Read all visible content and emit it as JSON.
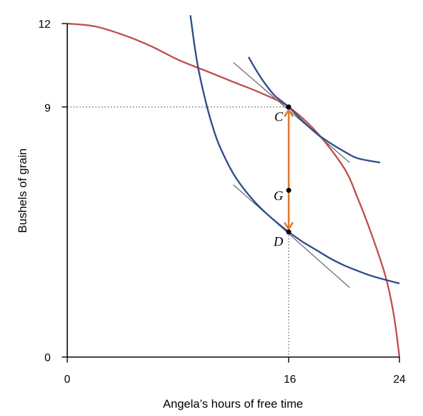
{
  "chart_data": {
    "type": "line",
    "xlabel": "Angela’s hours of free time",
    "ylabel": "Bushels of grain",
    "xlim": [
      0,
      24
    ],
    "ylim": [
      0,
      12
    ],
    "xticks": [
      "0",
      "16",
      "24"
    ],
    "yticks": [
      "0",
      "9",
      "12"
    ],
    "grid": false,
    "colors": {
      "frontier": "#c0504d",
      "indifference": "#2e4e8a",
      "arrow": "#e07a2e",
      "tangent": "#444444",
      "guide": "#555555"
    },
    "frontier": {
      "x": [
        0,
        2,
        4,
        6,
        8,
        10,
        12,
        14,
        16,
        18,
        20,
        21,
        22,
        23,
        23.6,
        24
      ],
      "y": [
        12,
        11.9,
        11.6,
        11.2,
        10.7,
        10.3,
        9.9,
        9.5,
        9.0,
        8.1,
        6.8,
        5.7,
        4.4,
        2.9,
        1.5,
        0
      ]
    },
    "indifference_curves": [
      {
        "x": [
          8.9,
          9.2,
          9.5,
          10.0,
          10.5,
          11.0,
          12.0,
          13.0,
          14.0,
          15.0,
          16.0,
          17.0,
          18.0,
          19.0,
          20.0,
          21.0,
          22.0,
          23.0,
          24.0
        ],
        "y": [
          12.3,
          11.2,
          10.3,
          9.2,
          8.3,
          7.6,
          6.6,
          5.9,
          5.35,
          4.9,
          4.5,
          4.15,
          3.85,
          3.55,
          3.3,
          3.1,
          2.92,
          2.78,
          2.65
        ]
      },
      {
        "x": [
          13.1,
          13.5,
          14.0,
          14.5,
          15.0,
          15.5,
          16.0,
          17.0,
          18.0,
          19.0,
          20.0,
          21.0,
          22.6
        ],
        "y": [
          10.8,
          10.45,
          10.05,
          9.7,
          9.4,
          9.2,
          9.0,
          8.5,
          8.05,
          7.7,
          7.4,
          7.15,
          7.0
        ]
      }
    ],
    "tangent_lines": [
      {
        "x": [
          12.0,
          20.4
        ],
        "y": [
          10.6,
          7.0
        ]
      },
      {
        "x": [
          12.0,
          20.4
        ],
        "y": [
          6.2,
          2.5
        ]
      }
    ],
    "points": [
      {
        "label": "C",
        "x": 16,
        "y": 9.0
      },
      {
        "label": "G",
        "x": 16,
        "y": 6.0
      },
      {
        "label": "D",
        "x": 16,
        "y": 4.5
      }
    ],
    "arrows": [
      {
        "x": 16,
        "from_y": 6.0,
        "to_y": 9.0
      },
      {
        "x": 16,
        "from_y": 6.0,
        "to_y": 4.5
      }
    ],
    "guides": [
      {
        "x": [
          0,
          16
        ],
        "y": [
          9.0,
          9.0
        ]
      },
      {
        "x": [
          16,
          16
        ],
        "y": [
          4.5,
          0
        ]
      }
    ]
  }
}
